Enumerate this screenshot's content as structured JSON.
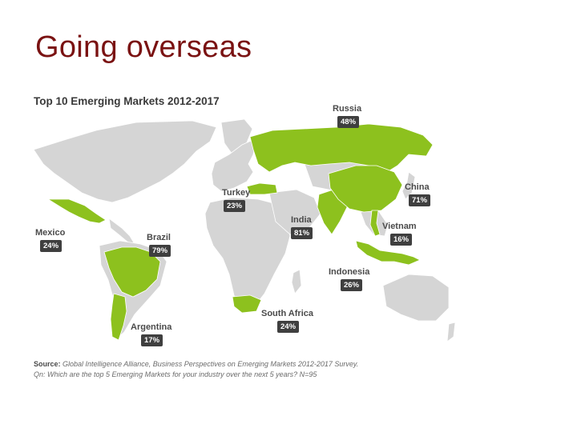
{
  "slide": {
    "title": "Going overseas"
  },
  "map": {
    "title": "Top 10 Emerging Markets 2012-2017",
    "colors": {
      "highlight": "#8dc11e",
      "land": "#d5d5d5",
      "border": "#ffffff",
      "badge": "#3f3f3f"
    },
    "markets": [
      {
        "id": "russia",
        "name": "Russia",
        "percent": "48%"
      },
      {
        "id": "china",
        "name": "China",
        "percent": "71%"
      },
      {
        "id": "turkey",
        "name": "Turkey",
        "percent": "23%"
      },
      {
        "id": "india",
        "name": "India",
        "percent": "81%"
      },
      {
        "id": "mexico",
        "name": "Mexico",
        "percent": "24%"
      },
      {
        "id": "brazil",
        "name": "Brazil",
        "percent": "79%"
      },
      {
        "id": "vietnam",
        "name": "Vietnam",
        "percent": "16%"
      },
      {
        "id": "indonesia",
        "name": "Indonesia",
        "percent": "26%"
      },
      {
        "id": "south-africa",
        "name": "South Africa",
        "percent": "24%"
      },
      {
        "id": "argentina",
        "name": "Argentina",
        "percent": "17%"
      }
    ],
    "source": {
      "label": "Source:",
      "text": "Global Intelligence Alliance, Business Perspectives on Emerging Markets 2012-2017 Survey.",
      "question": "Qn: Which are the top 5 Emerging Markets for your industry over the next 5 years? N=95"
    }
  }
}
